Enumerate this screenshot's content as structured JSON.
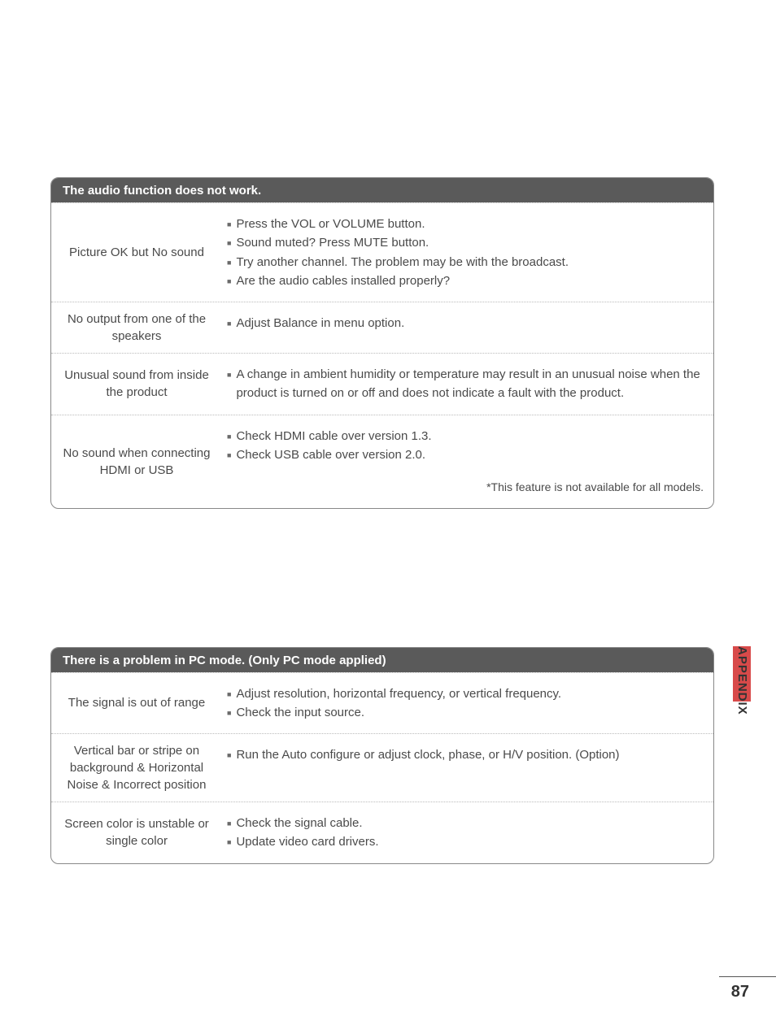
{
  "tables": [
    {
      "header": "The audio function does not work.",
      "rows": [
        {
          "label": "Picture OK but No sound",
          "items": [
            "Press the VOL or VOLUME button.",
            "Sound muted? Press MUTE button.",
            "Try another channel. The problem may be with the broadcast.",
            "Are the audio cables installed properly?"
          ],
          "note": ""
        },
        {
          "label": "No output from one of the speakers",
          "items": [
            "Adjust Balance in menu option."
          ],
          "note": ""
        },
        {
          "label": "Unusual sound from inside the product",
          "items": [
            "A change in ambient humidity or temperature may result in an unusual noise when the product is turned on or off and does not indicate a fault with the product."
          ],
          "note": ""
        },
        {
          "label": "No sound when connecting HDMI or USB",
          "items": [
            "Check HDMI cable over version 1.3.",
            "Check USB cable over version 2.0."
          ],
          "note": "*This feature is not available for all models."
        }
      ]
    },
    {
      "header": "There is a problem in PC mode. (Only PC mode applied)",
      "rows": [
        {
          "label": "The signal is out of range",
          "items": [
            "Adjust resolution, horizontal frequency, or vertical frequency.",
            "Check the input source."
          ],
          "note": ""
        },
        {
          "label": "Vertical bar or stripe on background & Horizontal Noise & Incorrect position",
          "items": [
            "Run the Auto configure or adjust clock, phase, or H/V position. (Option)"
          ],
          "note": ""
        },
        {
          "label": "Screen color is unstable or single color",
          "items": [
            "Check the signal cable.",
            "Update video card drivers."
          ],
          "note": ""
        }
      ]
    }
  ],
  "sideText": "APPENDIX",
  "pageNumber": "87",
  "colors": {
    "header_bg": "#5a5a5a",
    "header_fg": "#ffffff",
    "tab_bg": "#d84a4a",
    "body_fg": "#4a4a4a"
  }
}
